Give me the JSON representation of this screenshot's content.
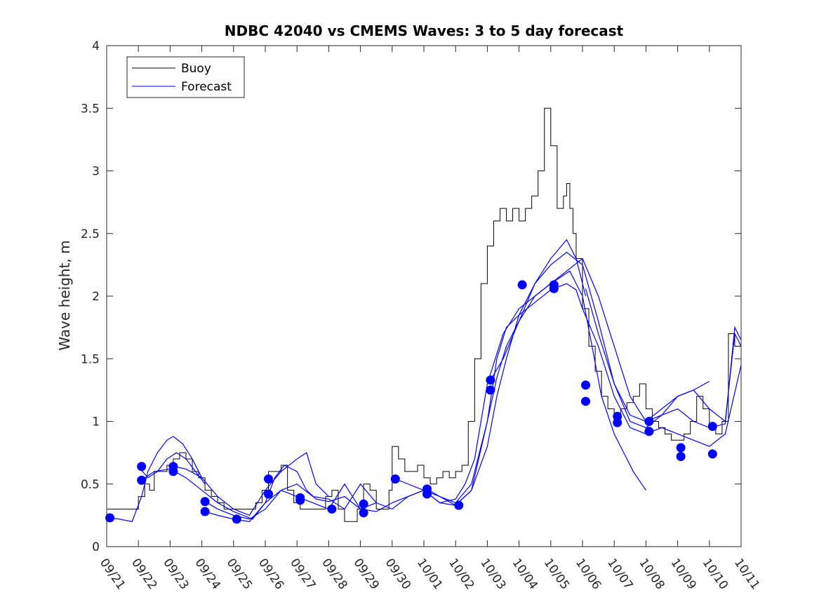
{
  "chart_data": {
    "type": "line",
    "title": "NDBC 42040 vs CMEMS Waves: 3 to 5 day forecast",
    "xlabel": "",
    "ylabel": "Wave height, m",
    "xlim": [
      0,
      20
    ],
    "ylim": [
      0,
      4
    ],
    "grid": false,
    "legend_position": "top-left",
    "x_tick_labels": [
      "09/21",
      "09/22",
      "09/23",
      "09/24",
      "09/25",
      "09/26",
      "09/27",
      "09/28",
      "09/29",
      "09/30",
      "10/01",
      "10/02",
      "10/03",
      "10/04",
      "10/05",
      "10/06",
      "10/07",
      "10/08",
      "10/09",
      "10/10",
      "10/11"
    ],
    "y_ticks": [
      0,
      0.5,
      1,
      1.5,
      2,
      2.5,
      3,
      3.5,
      4
    ],
    "y_tick_labels": [
      "0",
      "0.5",
      "1",
      "1.5",
      "2",
      "2.5",
      "3",
      "3.5",
      "4"
    ],
    "legend": [
      "Buoy",
      "Forecast"
    ],
    "colors": {
      "buoy": "#000000",
      "forecast": "#0000ff",
      "axis": "#262626"
    },
    "buoy": {
      "name": "Buoy",
      "x": [
        0,
        0.3,
        0.6,
        0.9,
        1.0,
        1.2,
        1.35,
        1.5,
        1.7,
        1.9,
        2.1,
        2.3,
        2.5,
        2.7,
        2.9,
        3.1,
        3.3,
        3.5,
        3.7,
        3.9,
        4.1,
        4.3,
        4.5,
        4.7,
        4.9,
        5.1,
        5.3,
        5.5,
        5.7,
        5.9,
        6.1,
        6.3,
        6.5,
        6.7,
        6.9,
        7.1,
        7.3,
        7.5,
        7.7,
        7.9,
        8.1,
        8.3,
        8.5,
        8.7,
        8.9,
        9.0,
        9.2,
        9.4,
        9.6,
        9.8,
        10.0,
        10.2,
        10.4,
        10.6,
        10.8,
        11.0,
        11.2,
        11.4,
        11.6,
        11.8,
        12.0,
        12.2,
        12.4,
        12.6,
        12.8,
        13.0,
        13.2,
        13.4,
        13.6,
        13.8,
        14.0,
        14.2,
        14.4,
        14.5,
        14.6,
        14.7,
        14.8,
        15.0,
        15.2,
        15.4,
        15.6,
        15.8,
        16.0,
        16.2,
        16.4,
        16.6,
        16.8,
        17.0,
        17.2,
        17.4,
        17.6,
        17.8,
        18.0,
        18.2,
        18.4,
        18.6,
        18.8,
        19.0,
        19.2,
        19.4,
        19.6,
        19.8,
        20.0
      ],
      "y": [
        0.3,
        0.3,
        0.3,
        0.3,
        0.4,
        0.5,
        0.45,
        0.6,
        0.6,
        0.65,
        0.7,
        0.75,
        0.7,
        0.6,
        0.55,
        0.45,
        0.4,
        0.35,
        0.3,
        0.3,
        0.3,
        0.3,
        0.3,
        0.35,
        0.45,
        0.6,
        0.6,
        0.65,
        0.45,
        0.35,
        0.3,
        0.3,
        0.3,
        0.3,
        0.4,
        0.45,
        0.3,
        0.2,
        0.2,
        0.3,
        0.5,
        0.45,
        0.3,
        0.3,
        0.45,
        0.8,
        0.7,
        0.6,
        0.6,
        0.65,
        0.55,
        0.5,
        0.55,
        0.6,
        0.55,
        0.6,
        0.65,
        1.0,
        1.5,
        2.1,
        2.4,
        2.6,
        2.7,
        2.6,
        2.7,
        2.6,
        2.7,
        2.8,
        3.0,
        3.5,
        3.2,
        2.7,
        2.8,
        2.9,
        2.7,
        2.5,
        2.3,
        1.9,
        1.6,
        1.4,
        1.2,
        1.1,
        1.05,
        1.1,
        1.15,
        1.2,
        1.3,
        1.1,
        1.0,
        0.95,
        0.9,
        0.85,
        0.85,
        0.9,
        1.0,
        1.2,
        1.1,
        0.95,
        0.9,
        1.0,
        1.7,
        1.6,
        1.5
      ]
    },
    "forecasts": [
      {
        "name": "Forecast",
        "x": [
          0,
          0.4,
          0.8,
          1.1,
          1.3,
          1.6,
          1.9,
          2.1,
          2.4,
          2.7,
          3.0
        ],
        "y": [
          0.23,
          0.22,
          0.2,
          0.4,
          0.6,
          0.75,
          0.85,
          0.88,
          0.82,
          0.7,
          0.55
        ]
      },
      {
        "name": "Forecast",
        "x": [
          1.0,
          1.3,
          1.6,
          1.9,
          2.2,
          2.5,
          2.8,
          3.1
        ],
        "y": [
          0.64,
          0.55,
          0.6,
          0.7,
          0.75,
          0.7,
          0.6,
          0.5
        ]
      },
      {
        "name": "Forecast",
        "x": [
          1.1,
          1.5,
          2.0,
          2.5,
          3.0,
          3.5,
          4.0,
          4.3,
          4.6,
          5.0,
          5.3,
          5.6,
          6.0,
          6.3,
          6.6,
          7.0,
          7.5,
          8.0,
          8.5
        ],
        "y": [
          0.53,
          0.6,
          0.62,
          0.55,
          0.45,
          0.35,
          0.28,
          0.25,
          0.22,
          0.35,
          0.55,
          0.65,
          0.6,
          0.45,
          0.38,
          0.36,
          0.4,
          0.3,
          0.35
        ]
      },
      {
        "name": "Forecast",
        "x": [
          2.1,
          2.5,
          3.0,
          3.5,
          4.0,
          4.5,
          5.0,
          5.5,
          6.0,
          6.3,
          6.6,
          7.0
        ],
        "y": [
          0.64,
          0.62,
          0.55,
          0.4,
          0.3,
          0.25,
          0.45,
          0.6,
          0.7,
          0.75,
          0.5,
          0.4
        ]
      },
      {
        "name": "Forecast",
        "x": [
          3.1,
          3.5,
          4.0,
          4.5,
          5.0,
          5.5,
          6.0,
          6.5,
          7.0,
          7.5,
          8.0,
          8.5,
          9.0,
          9.5,
          10.0,
          10.5,
          11.0,
          11.3,
          11.6,
          12.0,
          12.5,
          13.0,
          13.5,
          14.0,
          14.3,
          14.6,
          14.8,
          15.0,
          15.3,
          15.6,
          16.0,
          16.3,
          16.6,
          17.0
        ],
        "y": [
          0.36,
          0.3,
          0.25,
          0.22,
          0.3,
          0.45,
          0.5,
          0.4,
          0.38,
          0.3,
          0.5,
          0.35,
          0.3,
          0.4,
          0.45,
          0.35,
          0.38,
          0.5,
          0.7,
          1.3,
          1.7,
          1.9,
          2.0,
          2.1,
          2.15,
          2.2,
          2.1,
          2.0,
          1.6,
          1.2,
          0.9,
          0.75,
          0.6,
          0.45
        ]
      },
      {
        "name": "Forecast",
        "x": [
          3.1,
          3.5,
          4.0,
          4.5,
          5.0,
          5.5,
          6.0,
          6.5,
          7.0,
          7.5,
          8.0,
          8.5,
          9.0,
          9.5,
          10.0,
          10.5,
          11.0,
          11.5,
          12.0,
          12.3,
          12.6,
          13.0,
          13.5,
          14.0,
          14.5,
          14.8,
          15.0,
          15.5,
          16.0,
          16.5,
          17.0,
          17.5,
          18.0,
          18.5,
          19.0,
          19.5,
          20.0
        ],
        "y": [
          0.28,
          0.25,
          0.22,
          0.2,
          0.35,
          0.45,
          0.4,
          0.35,
          0.3,
          0.5,
          0.3,
          0.28,
          0.35,
          0.4,
          0.45,
          0.35,
          0.33,
          0.45,
          1.0,
          1.5,
          1.75,
          1.85,
          1.95,
          2.05,
          2.1,
          2.05,
          1.9,
          1.6,
          1.2,
          0.95,
          0.9,
          0.95,
          0.9,
          0.85,
          0.8,
          0.9,
          1.45
        ]
      },
      {
        "name": "Forecast",
        "x": [
          9.1,
          9.5,
          10.0,
          10.5,
          11.0,
          11.5,
          12.0,
          12.3,
          12.6,
          13.0,
          13.5,
          14.0,
          14.5,
          14.8,
          15.1
        ],
        "y": [
          0.54,
          0.5,
          0.45,
          0.4,
          0.35,
          0.5,
          1.0,
          1.35,
          1.6,
          1.8,
          2.1,
          2.3,
          2.45,
          2.3,
          2.0
        ]
      },
      {
        "name": "Forecast",
        "x": [
          10.1,
          10.5,
          11.0,
          11.5,
          12.0,
          12.3,
          12.6,
          13.0,
          13.5,
          14.0,
          14.5,
          15.0,
          15.5,
          16.0,
          16.5,
          17.0,
          17.5,
          18.0,
          18.5,
          19.0,
          19.5,
          19.8,
          20.0
        ],
        "y": [
          0.46,
          0.4,
          0.33,
          0.45,
          0.8,
          1.2,
          1.5,
          1.85,
          2.1,
          2.25,
          2.35,
          2.25,
          1.8,
          1.3,
          1.0,
          0.95,
          1.05,
          1.1,
          1.0,
          0.95,
          0.98,
          1.75,
          1.65
        ]
      },
      {
        "name": "Forecast",
        "x": [
          12.1,
          12.5,
          13.0,
          13.5,
          14.0,
          14.5,
          15.0,
          15.5,
          16.0,
          16.5,
          17.0,
          17.5,
          18.0,
          18.5,
          19.0,
          19.5,
          19.8,
          20.0
        ],
        "y": [
          1.33,
          1.5,
          1.8,
          2.0,
          2.1,
          2.2,
          2.3,
          2.0,
          1.6,
          1.2,
          1.0,
          1.05,
          1.2,
          1.25,
          1.1,
          1.0,
          1.7,
          1.6
        ]
      },
      {
        "name": "Forecast",
        "x": [
          15.1,
          15.5,
          16.0,
          16.5,
          17.0,
          17.5,
          18.0,
          18.5,
          19.0
        ],
        "y": [
          2.06,
          1.7,
          1.3,
          1.05,
          1.0,
          1.1,
          1.2,
          1.25,
          1.32
        ]
      }
    ],
    "markers": {
      "x": [
        0.1,
        1.1,
        1.1,
        2.1,
        2.1,
        3.1,
        3.1,
        4.1,
        5.1,
        5.1,
        6.1,
        6.1,
        7.1,
        8.1,
        8.1,
        9.1,
        10.1,
        10.1,
        11.1,
        12.1,
        12.1,
        13.1,
        14.1,
        14.1,
        15.1,
        15.1,
        16.1,
        16.1,
        17.1,
        17.1,
        18.1,
        18.1,
        19.1,
        19.1
      ],
      "y": [
        0.23,
        0.64,
        0.53,
        0.64,
        0.6,
        0.36,
        0.28,
        0.22,
        0.54,
        0.42,
        0.39,
        0.37,
        0.3,
        0.34,
        0.27,
        0.54,
        0.46,
        0.42,
        0.33,
        1.33,
        1.25,
        2.09,
        2.09,
        2.06,
        1.29,
        1.16,
        1.04,
        0.99,
        1.0,
        0.92,
        0.79,
        0.72,
        0.96,
        0.74
      ]
    }
  }
}
